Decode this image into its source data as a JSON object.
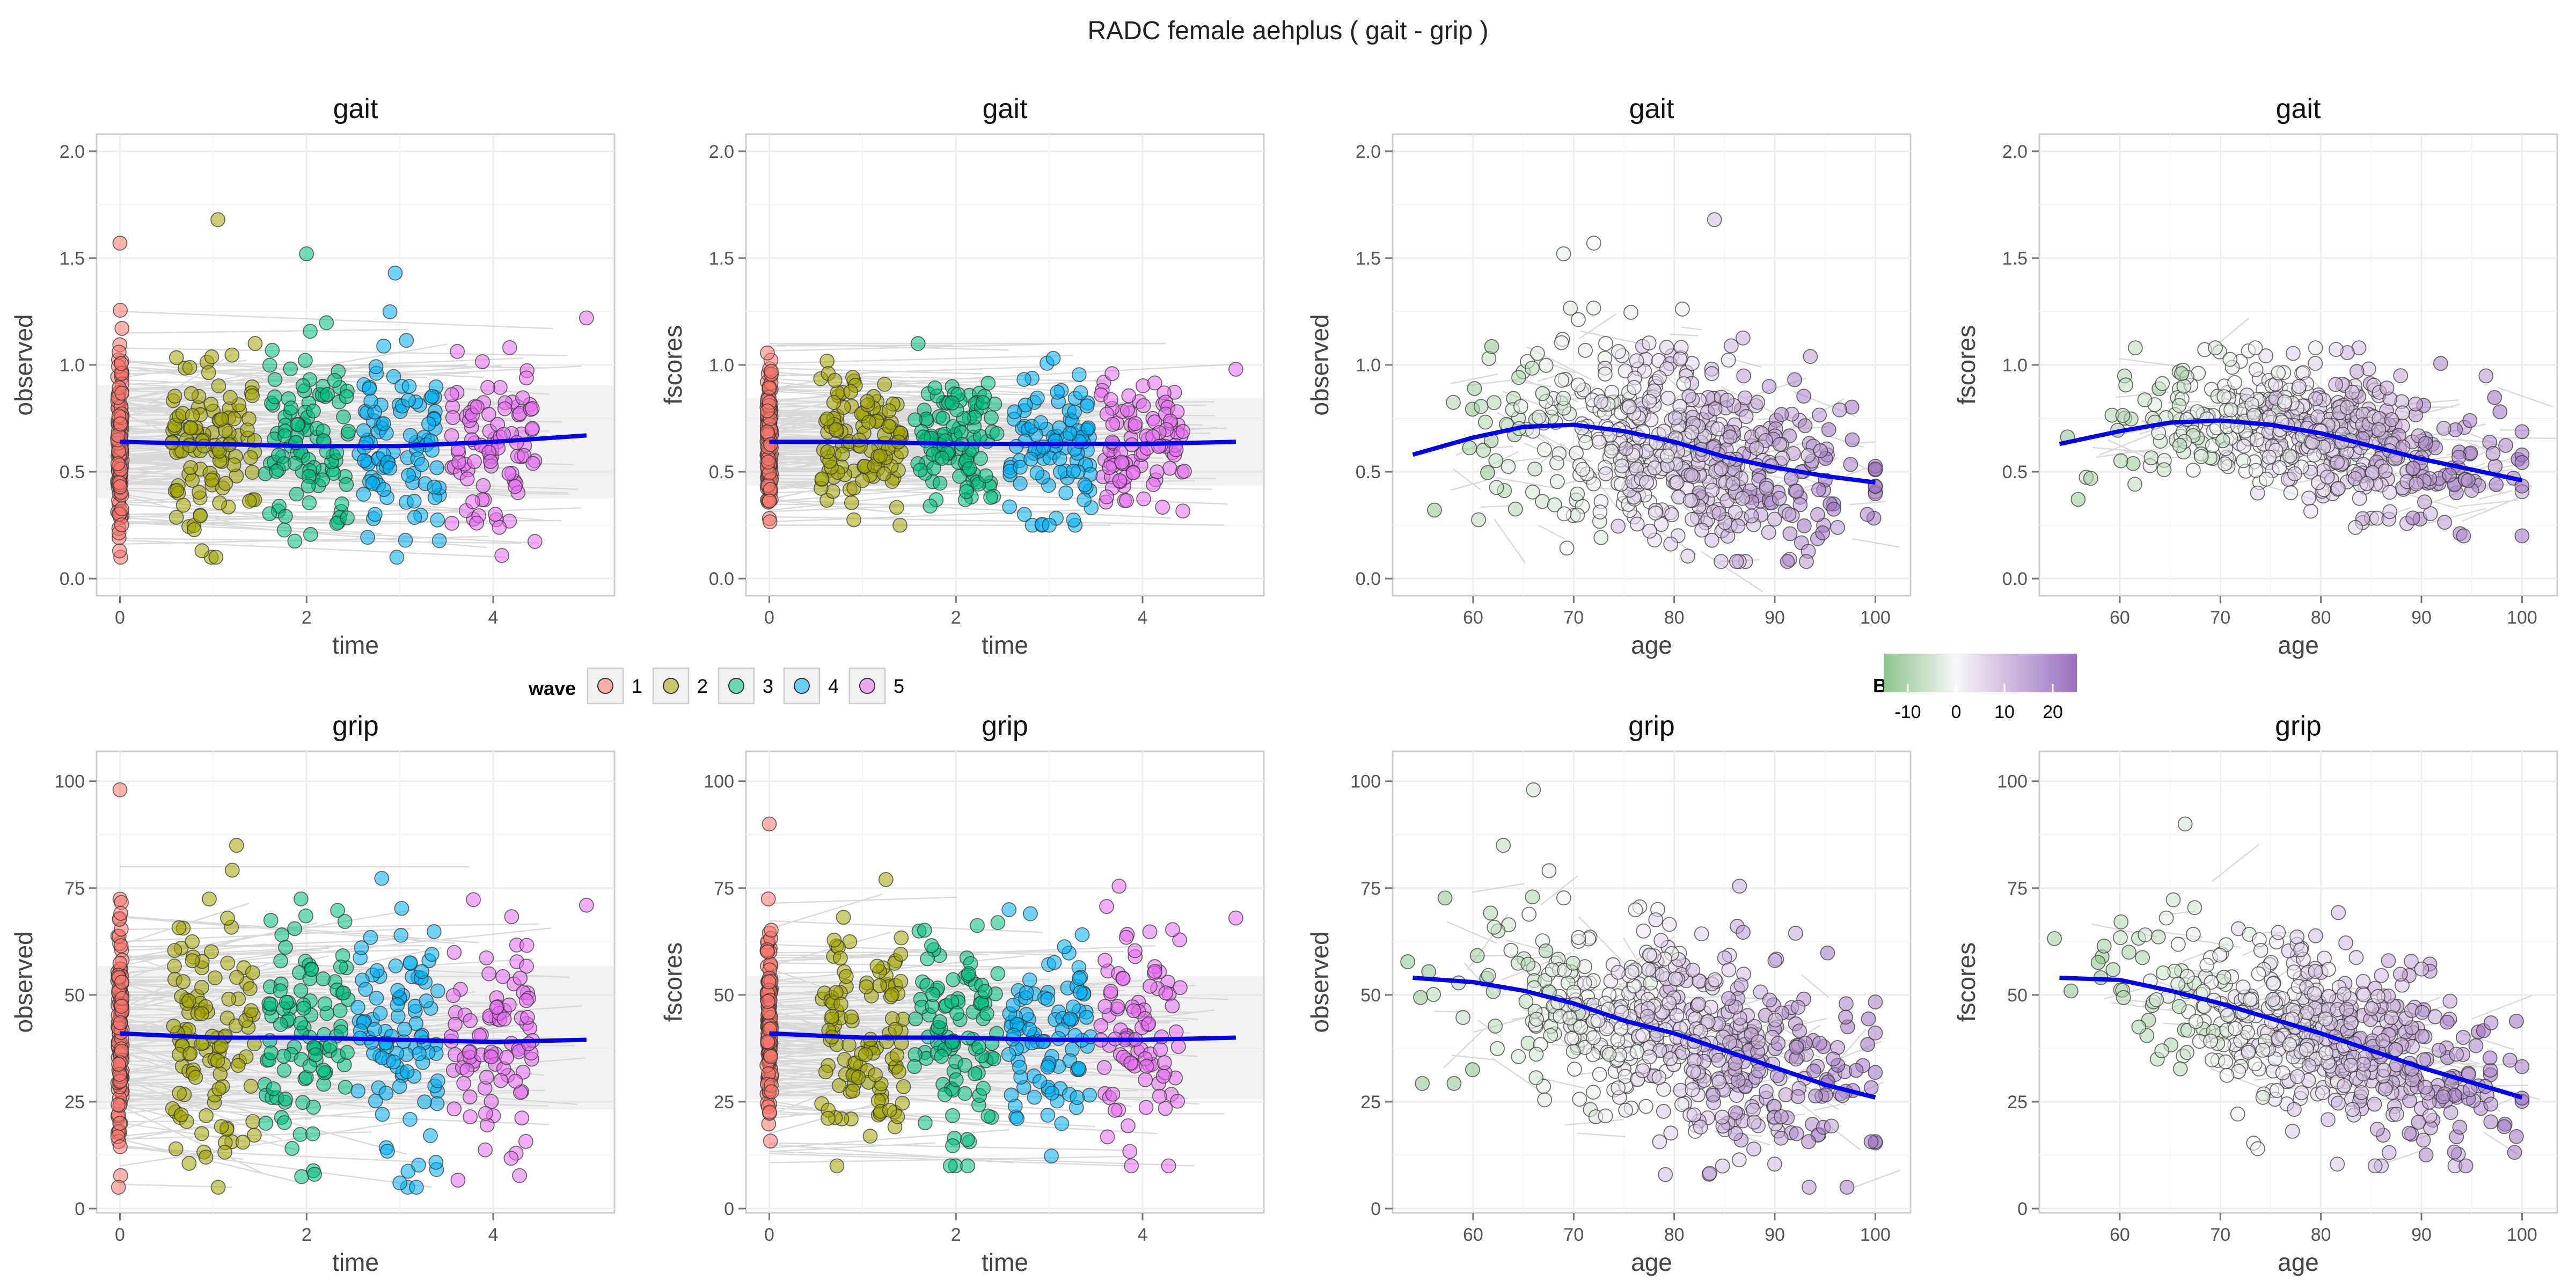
{
  "title": "RADC  female  aehplus ( gait - grip )",
  "colors": {
    "waves": [
      "#F8766D",
      "#A3A500",
      "#00BF7D",
      "#00B0F6",
      "#E76BF3"
    ],
    "bage_low": "#8DC38D",
    "bage_mid": "#F7F7F7",
    "bage_high": "#9B6FC0",
    "smooth_line": "#0000EE",
    "trajectory": "#BDBDBD",
    "ribbon": "#D9D9D9"
  },
  "legends": {
    "wave": {
      "title": "wave",
      "labels": [
        "1",
        "2",
        "3",
        "4",
        "5"
      ]
    },
    "bage": {
      "title": "BAGE",
      "tick_labels": [
        "-10",
        "0",
        "10",
        "20"
      ],
      "range": [
        -15,
        25
      ]
    }
  },
  "chart_data": [
    {
      "type": "scatter",
      "row": "gait",
      "title": "gait",
      "xlabel": "time",
      "ylabel": "observed",
      "color_by": "wave",
      "xlim": [
        -0.25,
        5.3
      ],
      "ylim": [
        -0.08,
        2.08
      ],
      "xticks": [
        0,
        2,
        4
      ],
      "yticks": [
        0.0,
        0.5,
        1.0,
        1.5,
        2.0
      ],
      "ytick_labels": [
        "0.0",
        "0.5",
        "1.0",
        "1.5",
        "2.0"
      ],
      "smooth": {
        "x": [
          0,
          1,
          2,
          3,
          4,
          5
        ],
        "y": [
          0.64,
          0.63,
          0.62,
          0.62,
          0.64,
          0.67
        ]
      },
      "wave_centers": [
        0,
        1,
        2,
        3,
        4
      ],
      "wave_spread": 0.45,
      "y_center": 0.64,
      "y_sd": 0.22,
      "y_min": 0.1,
      "y_max": 1.4,
      "n_points": [
        130,
        110,
        100,
        95,
        90
      ],
      "outliers": [
        {
          "x": 0.0,
          "y": 1.57,
          "wave": 1
        },
        {
          "x": 1.05,
          "y": 1.68,
          "wave": 2
        },
        {
          "x": 2.0,
          "y": 1.52,
          "wave": 3
        },
        {
          "x": 2.95,
          "y": 1.43,
          "wave": 4
        },
        {
          "x": 5.0,
          "y": 1.22,
          "wave": 5
        }
      ],
      "grid": true
    },
    {
      "type": "scatter",
      "row": "gait",
      "title": "gait",
      "xlabel": "time",
      "ylabel": "fscores",
      "color_by": "wave",
      "xlim": [
        -0.25,
        5.3
      ],
      "ylim": [
        -0.08,
        2.08
      ],
      "xticks": [
        0,
        2,
        4
      ],
      "yticks": [
        0.0,
        0.5,
        1.0,
        1.5,
        2.0
      ],
      "ytick_labels": [
        "0.0",
        "0.5",
        "1.0",
        "1.5",
        "2.0"
      ],
      "smooth": {
        "x": [
          0,
          1,
          2,
          3,
          4,
          5
        ],
        "y": [
          0.64,
          0.64,
          0.63,
          0.63,
          0.63,
          0.64
        ]
      },
      "wave_centers": [
        0,
        1,
        2,
        3,
        4
      ],
      "wave_spread": 0.45,
      "y_center": 0.64,
      "y_sd": 0.17,
      "y_min": 0.25,
      "y_max": 1.1,
      "n_points": [
        130,
        110,
        100,
        95,
        90
      ],
      "outliers": [
        {
          "x": 5.0,
          "y": 0.98,
          "wave": 5
        },
        {
          "x": 3.0,
          "y": 0.25,
          "wave": 4
        }
      ],
      "grid": true
    },
    {
      "type": "scatter",
      "row": "gait",
      "title": "gait",
      "xlabel": "age",
      "ylabel": "observed",
      "color_by": "bage",
      "xlim": [
        52,
        103.5
      ],
      "ylim": [
        -0.08,
        2.08
      ],
      "xticks": [
        60,
        70,
        80,
        90,
        100
      ],
      "yticks": [
        0.0,
        0.5,
        1.0,
        1.5,
        2.0
      ],
      "ytick_labels": [
        "0.0",
        "0.5",
        "1.0",
        "1.5",
        "2.0"
      ],
      "smooth": {
        "x": [
          54,
          60,
          65,
          70,
          75,
          80,
          85,
          90,
          95,
          100
        ],
        "y": [
          0.58,
          0.66,
          0.71,
          0.72,
          0.69,
          0.64,
          0.57,
          0.52,
          0.48,
          0.45
        ]
      },
      "y_sd": 0.22,
      "y_min": 0.08,
      "y_max": 1.45,
      "outliers": [
        {
          "x": 84,
          "y": 1.68
        },
        {
          "x": 72,
          "y": 1.57
        },
        {
          "x": 69,
          "y": 1.52
        }
      ],
      "grid": true
    },
    {
      "type": "scatter",
      "row": "gait",
      "title": "gait",
      "xlabel": "age",
      "ylabel": "fscores",
      "color_by": "bage",
      "xlim": [
        52,
        103.5
      ],
      "ylim": [
        -0.08,
        2.08
      ],
      "xticks": [
        60,
        70,
        80,
        90,
        100
      ],
      "yticks": [
        0.0,
        0.5,
        1.0,
        1.5,
        2.0
      ],
      "ytick_labels": [
        "0.0",
        "0.5",
        "1.0",
        "1.5",
        "2.0"
      ],
      "smooth": {
        "x": [
          54,
          60,
          65,
          70,
          75,
          80,
          85,
          90,
          95,
          100
        ],
        "y": [
          0.63,
          0.69,
          0.73,
          0.74,
          0.72,
          0.68,
          0.62,
          0.56,
          0.51,
          0.46
        ]
      },
      "y_sd": 0.16,
      "y_min": 0.2,
      "y_max": 1.08,
      "outliers": [],
      "grid": true
    },
    {
      "type": "scatter",
      "row": "grip",
      "title": "grip",
      "xlabel": "time",
      "ylabel": "observed",
      "color_by": "wave",
      "xlim": [
        -0.25,
        5.3
      ],
      "ylim": [
        -1,
        107
      ],
      "xticks": [
        0,
        2,
        4
      ],
      "yticks": [
        0,
        25,
        50,
        75,
        100
      ],
      "ytick_labels": [
        "0",
        "25",
        "50",
        "75",
        "100"
      ],
      "smooth": {
        "x": [
          0,
          1,
          2,
          3,
          4,
          5
        ],
        "y": [
          41,
          40,
          40,
          39.5,
          39,
          39.5
        ]
      },
      "wave_centers": [
        0,
        1,
        2,
        3,
        4
      ],
      "wave_spread": 0.45,
      "y_center": 40,
      "y_sd": 14,
      "y_min": 5,
      "y_max": 80,
      "n_points": [
        130,
        110,
        100,
        95,
        90
      ],
      "outliers": [
        {
          "x": 0.0,
          "y": 98,
          "wave": 1
        },
        {
          "x": 1.25,
          "y": 85,
          "wave": 2
        },
        {
          "x": 5.0,
          "y": 71,
          "wave": 5
        },
        {
          "x": 3.0,
          "y": 6,
          "wave": 4
        }
      ],
      "grid": true
    },
    {
      "type": "scatter",
      "row": "grip",
      "title": "grip",
      "xlabel": "time",
      "ylabel": "fscores",
      "color_by": "wave",
      "xlim": [
        -0.25,
        5.3
      ],
      "ylim": [
        -1,
        107
      ],
      "xticks": [
        0,
        2,
        4
      ],
      "yticks": [
        0,
        25,
        50,
        75,
        100
      ],
      "ytick_labels": [
        "0",
        "25",
        "50",
        "75",
        "100"
      ],
      "smooth": {
        "x": [
          0,
          1,
          2,
          3,
          4,
          5
        ],
        "y": [
          41,
          40,
          40,
          39.5,
          39.5,
          40
        ]
      },
      "wave_centers": [
        0,
        1,
        2,
        3,
        4
      ],
      "wave_spread": 0.45,
      "y_center": 40,
      "y_sd": 12,
      "y_min": 10,
      "y_max": 79,
      "n_points": [
        130,
        110,
        100,
        95,
        90
      ],
      "outliers": [
        {
          "x": 0.0,
          "y": 90,
          "wave": 1
        },
        {
          "x": 1.25,
          "y": 77,
          "wave": 2
        },
        {
          "x": 5.0,
          "y": 68,
          "wave": 5
        }
      ],
      "grid": true
    },
    {
      "type": "scatter",
      "row": "grip",
      "title": "grip",
      "xlabel": "age",
      "ylabel": "observed",
      "color_by": "bage",
      "xlim": [
        52,
        103.5
      ],
      "ylim": [
        -1,
        107
      ],
      "xticks": [
        60,
        70,
        80,
        90,
        100
      ],
      "yticks": [
        0,
        25,
        50,
        75,
        100
      ],
      "ytick_labels": [
        "0",
        "25",
        "50",
        "75",
        "100"
      ],
      "smooth": {
        "x": [
          54,
          60,
          65,
          70,
          75,
          80,
          85,
          90,
          95,
          100
        ],
        "y": [
          54,
          53,
          51,
          48,
          44,
          41,
          37,
          33,
          29,
          26
        ]
      },
      "y_sd": 12,
      "y_min": 5,
      "y_max": 82,
      "outliers": [
        {
          "x": 66,
          "y": 98
        },
        {
          "x": 63,
          "y": 85
        }
      ],
      "grid": true
    },
    {
      "type": "scatter",
      "row": "grip",
      "title": "grip",
      "xlabel": "age",
      "ylabel": "fscores",
      "color_by": "bage",
      "xlim": [
        52,
        103.5
      ],
      "ylim": [
        -1,
        107
      ],
      "xticks": [
        60,
        70,
        80,
        90,
        100
      ],
      "yticks": [
        0,
        25,
        50,
        75,
        100
      ],
      "ytick_labels": [
        "0",
        "25",
        "50",
        "75",
        "100"
      ],
      "smooth": {
        "x": [
          54,
          60,
          65,
          70,
          75,
          80,
          85,
          90,
          95,
          100
        ],
        "y": [
          54,
          53.5,
          51,
          48,
          44.5,
          41,
          37,
          33,
          29.5,
          26
        ]
      },
      "y_sd": 10,
      "y_min": 10,
      "y_max": 80,
      "outliers": [
        {
          "x": 66.5,
          "y": 90
        }
      ],
      "grid": true
    }
  ]
}
